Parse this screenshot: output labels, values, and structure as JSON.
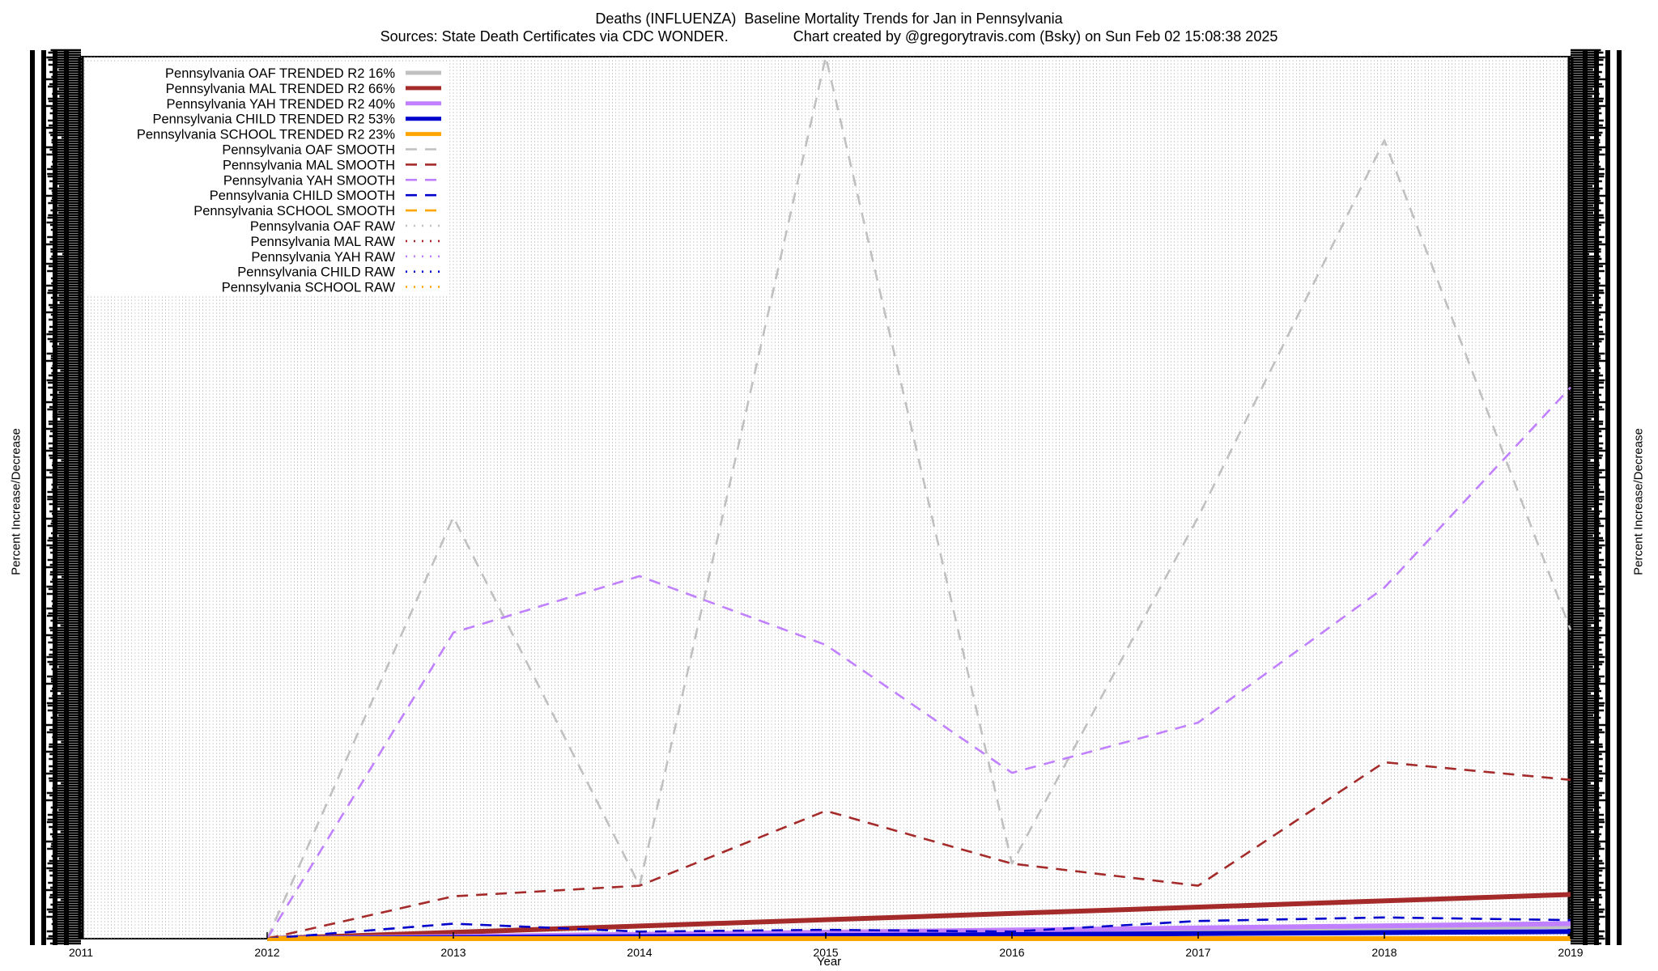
{
  "chart_data": {
    "type": "line",
    "title": "Deaths (INFLUENZA)  Baseline Mortality Trends for Jan in Pennsylvania",
    "subtitle": "Sources: State Death Certificates via CDC WONDER.                Chart created by @gregorytravis.com (Bsky) on Sun Feb 02 15:08:38 2025",
    "xlabel": "Year",
    "ylabel": "Percent Increase/Decrease",
    "x_ticks": [
      "2011",
      "2012",
      "2013",
      "2014",
      "2015",
      "2016",
      "2017",
      "2018",
      "2019"
    ],
    "xlim": [
      2011,
      2019
    ],
    "ylim": [
      0,
      1000
    ],
    "grid": true,
    "legend_position": "top-left",
    "series": [
      {
        "name": "Pennsylvania OAF TRENDED R2  16%",
        "style": "solid",
        "color": "#c0c0c0",
        "x": [
          2012,
          2019
        ],
        "y": [
          0,
          14
        ]
      },
      {
        "name": "Pennsylvania MAL TRENDED R2  66%",
        "style": "solid",
        "color": "#a52a2a",
        "x": [
          2012,
          2019
        ],
        "y": [
          0,
          50
        ]
      },
      {
        "name": "Pennsylvania YAH TRENDED R2  40%",
        "style": "solid",
        "color": "#c080ff",
        "x": [
          2012,
          2019
        ],
        "y": [
          0,
          17
        ]
      },
      {
        "name": "Pennsylvania CHILD TRENDED R2  53%",
        "style": "solid",
        "color": "#0000cc",
        "x": [
          2012,
          2019
        ],
        "y": [
          0,
          8
        ]
      },
      {
        "name": "Pennsylvania SCHOOL TRENDED R2  23%",
        "style": "solid",
        "color": "#ffa500",
        "x": [
          2012,
          2019
        ],
        "y": [
          0,
          0
        ]
      },
      {
        "name": "Pennsylvania OAF SMOOTH",
        "style": "dashed",
        "color": "#c0c0c0",
        "x": [
          2012,
          2013,
          2014,
          2015,
          2016,
          2017,
          2018,
          2019
        ],
        "y": [
          0,
          478,
          60,
          1000,
          85,
          478,
          905,
          350
        ]
      },
      {
        "name": "Pennsylvania MAL SMOOTH",
        "style": "dashed",
        "color": "#a52a2a",
        "x": [
          2012,
          2013,
          2014,
          2015,
          2016,
          2017,
          2018,
          2019
        ],
        "y": [
          0,
          48,
          60,
          145,
          85,
          60,
          200,
          180
        ]
      },
      {
        "name": "Pennsylvania YAH SMOOTH",
        "style": "dashed",
        "color": "#c080ff",
        "x": [
          2012,
          2013,
          2014,
          2015,
          2016,
          2017,
          2018,
          2019
        ],
        "y": [
          0,
          347,
          411,
          333,
          188,
          245,
          398,
          625
        ]
      },
      {
        "name": "Pennsylvania CHILD SMOOTH",
        "style": "dashed",
        "color": "#0000cc",
        "x": [
          2012,
          2013,
          2014,
          2015,
          2016,
          2017,
          2018,
          2019
        ],
        "y": [
          0,
          17,
          8,
          10,
          8,
          20,
          24,
          21
        ]
      },
      {
        "name": "Pennsylvania SCHOOL SMOOTH",
        "style": "dashed",
        "color": "#ffa500",
        "x": [
          2012,
          2013,
          2014,
          2015,
          2016,
          2017,
          2018,
          2019
        ],
        "y": [
          0,
          0,
          0,
          0,
          0,
          0,
          0,
          0
        ]
      },
      {
        "name": "Pennsylvania OAF RAW",
        "style": "dotted",
        "color": "#c0c0c0",
        "x": [],
        "y": []
      },
      {
        "name": "Pennsylvania MAL RAW",
        "style": "dotted",
        "color": "#a52a2a",
        "x": [],
        "y": []
      },
      {
        "name": "Pennsylvania YAH RAW",
        "style": "dotted",
        "color": "#c080ff",
        "x": [],
        "y": []
      },
      {
        "name": "Pennsylvania CHILD RAW",
        "style": "dotted",
        "color": "#0000cc",
        "x": [],
        "y": []
      },
      {
        "name": "Pennsylvania SCHOOL RAW",
        "style": "dotted",
        "color": "#ffa500",
        "x": [],
        "y": []
      }
    ]
  }
}
